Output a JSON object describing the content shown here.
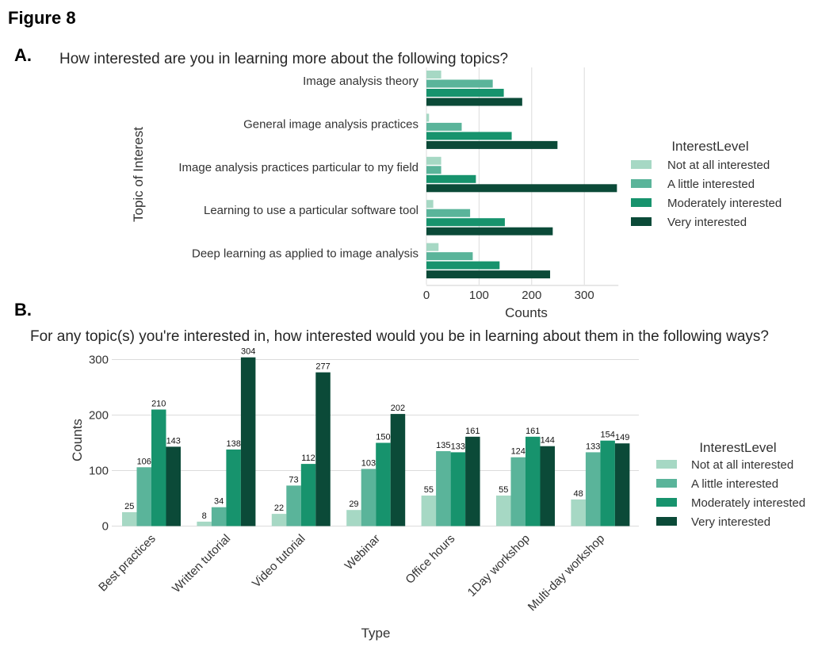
{
  "figure_title": "Figure 8",
  "colors": {
    "not_at_all": "#a6d8c4",
    "a_little": "#5ab49a",
    "moderately": "#17936d",
    "very": "#0b4a38"
  },
  "chart_data": [
    {
      "type": "bar",
      "orientation": "horizontal",
      "panel_label": "A.",
      "title": "How interested are you in learning more about the following topics?",
      "xlabel": "Counts",
      "ylabel": "Topic of Interest",
      "xlim": [
        0,
        380
      ],
      "xticks": [
        "0",
        "100",
        "200",
        "300"
      ],
      "grid": true,
      "legend_position": "right",
      "legend_title": "InterestLevel",
      "categories": [
        "Image analysis theory",
        "General image analysis practices",
        "Image analysis practices particular to my field",
        "Learning to use a particular software tool",
        "Deep learning as applied to image analysis"
      ],
      "series": [
        {
          "name": "Not at all interested",
          "values": [
            28,
            5,
            28,
            13,
            23
          ]
        },
        {
          "name": "A little interested",
          "values": [
            126,
            67,
            28,
            83,
            88
          ]
        },
        {
          "name": "Moderately interested",
          "values": [
            147,
            162,
            94,
            149,
            139
          ]
        },
        {
          "name": "Very interested",
          "values": [
            182,
            249,
            362,
            240,
            235
          ]
        }
      ]
    },
    {
      "type": "bar",
      "orientation": "vertical",
      "panel_label": "B.",
      "title": "For any topic(s) you're interested in, how interested would you be in learning about them in the following ways?",
      "xlabel": "Type",
      "ylabel": "Counts",
      "ylim": [
        0,
        310
      ],
      "yticks": [
        "0",
        "100",
        "200",
        "300"
      ],
      "grid": true,
      "legend_position": "right",
      "legend_title": "InterestLevel",
      "categories": [
        "Best practices",
        "Written tutorial",
        "Video tutorial",
        "Webinar",
        "Office hours",
        "1Day workshop",
        "Multi-day workshop"
      ],
      "series": [
        {
          "name": "Not at all interested",
          "values": [
            25,
            8,
            22,
            29,
            55,
            55,
            48
          ]
        },
        {
          "name": "A little interested",
          "values": [
            106,
            34,
            73,
            103,
            135,
            124,
            133
          ]
        },
        {
          "name": "Moderately interested",
          "values": [
            210,
            138,
            112,
            150,
            133,
            161,
            154
          ]
        },
        {
          "name": "Very interested",
          "values": [
            143,
            304,
            277,
            202,
            161,
            144,
            149
          ]
        }
      ]
    }
  ]
}
